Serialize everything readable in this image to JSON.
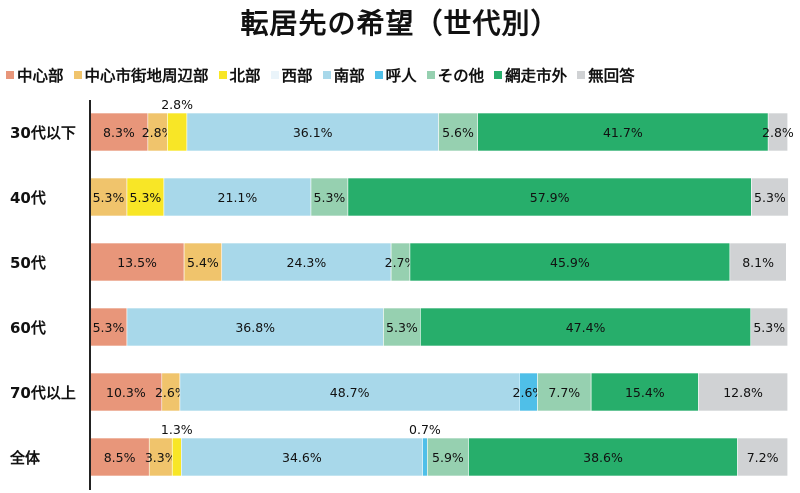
{
  "title": "転居先の希望（世代別）",
  "chart_data": {
    "type": "bar",
    "orientation": "horizontal",
    "stacked": true,
    "title": "転居先の希望（世代別）",
    "xlabel": "",
    "ylabel": "",
    "xlim": [
      0,
      100
    ],
    "legend_position": "top",
    "categories": [
      "30代以下",
      "40代",
      "50代",
      "60代",
      "70代以上",
      "全体"
    ],
    "series": [
      {
        "name": "中心部",
        "color": "#E8967A",
        "values": [
          8.3,
          0,
          13.5,
          5.3,
          10.3,
          8.5
        ]
      },
      {
        "name": "中心市街地周辺部",
        "color": "#F0C46C",
        "values": [
          2.8,
          5.3,
          5.4,
          0,
          2.6,
          3.3
        ]
      },
      {
        "name": "北部",
        "color": "#F8E626",
        "values": [
          2.8,
          5.3,
          0,
          0,
          0,
          1.3
        ]
      },
      {
        "name": "西部",
        "color": "#EAF4FA",
        "values": [
          0,
          0,
          0,
          0,
          0,
          0
        ]
      },
      {
        "name": "南部",
        "color": "#A8D8EA",
        "values": [
          36.1,
          21.1,
          24.3,
          36.8,
          48.7,
          34.6
        ]
      },
      {
        "name": "呼人",
        "color": "#4FBFE8",
        "values": [
          0,
          0,
          0,
          0,
          2.6,
          0.7
        ]
      },
      {
        "name": "その他",
        "color": "#96D0B0",
        "values": [
          5.6,
          5.3,
          2.7,
          5.3,
          7.7,
          5.9
        ]
      },
      {
        "name": "網走市外",
        "color": "#27AE6B",
        "values": [
          41.7,
          57.9,
          45.9,
          47.4,
          15.4,
          38.6
        ]
      },
      {
        "name": "無回答",
        "color": "#D0D2D4",
        "values": [
          2.8,
          5.3,
          8.1,
          5.3,
          12.8,
          7.2
        ]
      }
    ]
  }
}
